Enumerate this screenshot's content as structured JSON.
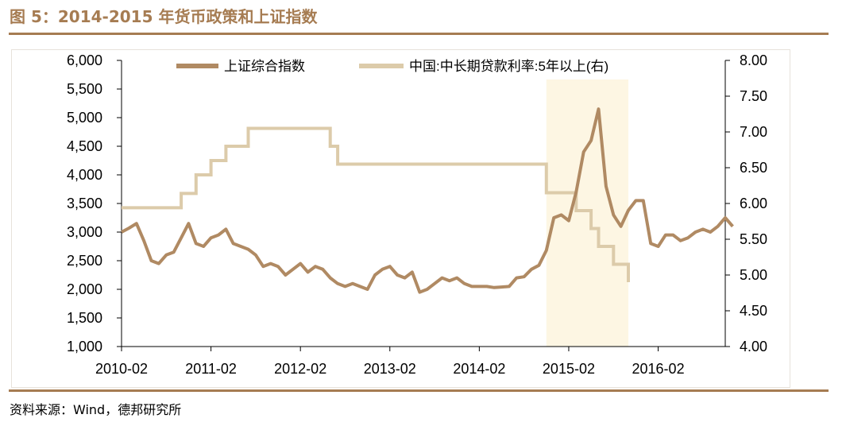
{
  "figure": {
    "title": "图 5：2014-2015 年货币政策和上证指数",
    "source": "资料来源：Wind，德邦研究所"
  },
  "colors": {
    "accent": "#a67c52",
    "index_line": "#b08a63",
    "rate_line": "#dccbaa",
    "highlight": "#fdf6e3"
  },
  "chart_data": {
    "type": "line",
    "x_ticks": [
      "2010-02",
      "2011-02",
      "2012-02",
      "2013-02",
      "2014-02",
      "2015-02",
      "2016-02"
    ],
    "x_range": [
      "2010-02",
      "2016-11"
    ],
    "y_left": {
      "ticks": [
        "1,000",
        "1,500",
        "2,000",
        "2,500",
        "3,000",
        "3,500",
        "4,000",
        "4,500",
        "5,000",
        "5,500",
        "6,000"
      ],
      "range": [
        1000,
        6000
      ]
    },
    "y_right": {
      "ticks": [
        "4.00",
        "4.50",
        "5.00",
        "5.50",
        "6.00",
        "6.50",
        "7.00",
        "7.50",
        "8.00"
      ],
      "range": [
        4.0,
        8.0
      ]
    },
    "legend_position": "top",
    "highlight": {
      "from": "2014-11",
      "to": "2015-10"
    },
    "series": [
      {
        "name": "上证综合指数",
        "axis": "left",
        "points": [
          [
            "2010-02",
            3000
          ],
          [
            "2010-03",
            3070
          ],
          [
            "2010-04",
            3150
          ],
          [
            "2010-05",
            2850
          ],
          [
            "2010-06",
            2500
          ],
          [
            "2010-07",
            2450
          ],
          [
            "2010-08",
            2600
          ],
          [
            "2010-09",
            2650
          ],
          [
            "2010-10",
            2900
          ],
          [
            "2010-11",
            3150
          ],
          [
            "2010-12",
            2800
          ],
          [
            "2011-01",
            2750
          ],
          [
            "2011-02",
            2900
          ],
          [
            "2011-03",
            2950
          ],
          [
            "2011-04",
            3050
          ],
          [
            "2011-05",
            2800
          ],
          [
            "2011-06",
            2750
          ],
          [
            "2011-07",
            2700
          ],
          [
            "2011-08",
            2600
          ],
          [
            "2011-09",
            2400
          ],
          [
            "2011-10",
            2450
          ],
          [
            "2011-11",
            2400
          ],
          [
            "2011-12",
            2250
          ],
          [
            "2012-01",
            2350
          ],
          [
            "2012-02",
            2450
          ],
          [
            "2012-03",
            2300
          ],
          [
            "2012-04",
            2400
          ],
          [
            "2012-05",
            2350
          ],
          [
            "2012-06",
            2200
          ],
          [
            "2012-07",
            2100
          ],
          [
            "2012-08",
            2050
          ],
          [
            "2012-09",
            2100
          ],
          [
            "2012-10",
            2050
          ],
          [
            "2012-11",
            2000
          ],
          [
            "2012-12",
            2250
          ],
          [
            "2013-01",
            2350
          ],
          [
            "2013-02",
            2400
          ],
          [
            "2013-03",
            2250
          ],
          [
            "2013-04",
            2200
          ],
          [
            "2013-05",
            2300
          ],
          [
            "2013-06",
            1950
          ],
          [
            "2013-07",
            2000
          ],
          [
            "2013-08",
            2100
          ],
          [
            "2013-09",
            2200
          ],
          [
            "2013-10",
            2150
          ],
          [
            "2013-11",
            2200
          ],
          [
            "2013-12",
            2100
          ],
          [
            "2014-01",
            2050
          ],
          [
            "2014-02",
            2050
          ],
          [
            "2014-03",
            2050
          ],
          [
            "2014-04",
            2030
          ],
          [
            "2014-05",
            2040
          ],
          [
            "2014-06",
            2050
          ],
          [
            "2014-07",
            2200
          ],
          [
            "2014-08",
            2220
          ],
          [
            "2014-09",
            2350
          ],
          [
            "2014-10",
            2420
          ],
          [
            "2014-11",
            2680
          ],
          [
            "2014-12",
            3250
          ],
          [
            "2015-01",
            3300
          ],
          [
            "2015-02",
            3200
          ],
          [
            "2015-03",
            3700
          ],
          [
            "2015-04",
            4400
          ],
          [
            "2015-05",
            4600
          ],
          [
            "2015-06",
            5150
          ],
          [
            "2015-07",
            3800
          ],
          [
            "2015-08",
            3300
          ],
          [
            "2015-09",
            3100
          ],
          [
            "2015-10",
            3380
          ],
          [
            "2015-11",
            3550
          ],
          [
            "2015-12",
            3550
          ],
          [
            "2016-01",
            2800
          ],
          [
            "2016-02",
            2750
          ],
          [
            "2016-03",
            2950
          ],
          [
            "2016-04",
            2950
          ],
          [
            "2016-05",
            2850
          ],
          [
            "2016-06",
            2900
          ],
          [
            "2016-07",
            3000
          ],
          [
            "2016-08",
            3050
          ],
          [
            "2016-09",
            3000
          ],
          [
            "2016-10",
            3100
          ],
          [
            "2016-11",
            3250
          ],
          [
            "2016-12",
            3100
          ]
        ]
      },
      {
        "name": "中国:中长期贷款利率:5年以上(右)",
        "axis": "right",
        "points": [
          [
            "2010-02",
            5.94
          ],
          [
            "2010-10",
            5.94
          ],
          [
            "2010-10",
            6.14
          ],
          [
            "2010-12",
            6.14
          ],
          [
            "2010-12",
            6.4
          ],
          [
            "2011-02",
            6.4
          ],
          [
            "2011-02",
            6.6
          ],
          [
            "2011-04",
            6.6
          ],
          [
            "2011-04",
            6.8
          ],
          [
            "2011-07",
            6.8
          ],
          [
            "2011-07",
            7.05
          ],
          [
            "2012-06",
            7.05
          ],
          [
            "2012-06",
            6.8
          ],
          [
            "2012-07",
            6.8
          ],
          [
            "2012-07",
            6.55
          ],
          [
            "2014-11",
            6.55
          ],
          [
            "2014-11",
            6.15
          ],
          [
            "2015-03",
            6.15
          ],
          [
            "2015-03",
            5.9
          ],
          [
            "2015-05",
            5.9
          ],
          [
            "2015-05",
            5.65
          ],
          [
            "2015-06",
            5.65
          ],
          [
            "2015-06",
            5.4
          ],
          [
            "2015-08",
            5.4
          ],
          [
            "2015-08",
            5.15
          ],
          [
            "2015-10",
            5.15
          ],
          [
            "2015-10",
            4.9
          ]
        ]
      }
    ]
  }
}
